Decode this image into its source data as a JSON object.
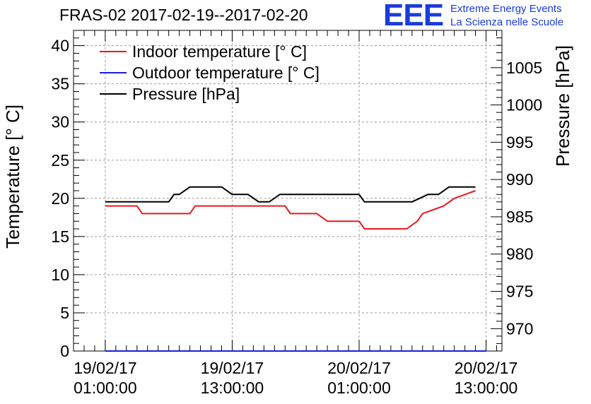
{
  "title": "FRAS-02 2017-02-19--2017-02-20",
  "logo": {
    "mark": "EEE",
    "line1": "Extreme Energy Events",
    "line2": "La Scienza nelle Scuole"
  },
  "colors": {
    "indoor": "#e8191b",
    "outdoor": "#1d1de0",
    "pressure": "#000000",
    "logo": "#1a3cdc"
  },
  "chart_data": {
    "type": "line",
    "title": "FRAS-02 2017-02-19--2017-02-20",
    "xlabel": "",
    "ylabel": "Temperature [° C]",
    "y2label": "Pressure [hPa]",
    "ylim": [
      0,
      42
    ],
    "y2lim": [
      967,
      1010
    ],
    "xlim": [
      "2017-02-18 22:00:00",
      "2017-02-20 14:30:00"
    ],
    "x_ticks": [
      {
        "x": "2017-02-19 01:00:00",
        "label1": "19/02/17",
        "label2": "01:00:00"
      },
      {
        "x": "2017-02-19 13:00:00",
        "label1": "19/02/17",
        "label2": "13:00:00"
      },
      {
        "x": "2017-02-20 01:00:00",
        "label1": "20/02/17",
        "label2": "01:00:00"
      },
      {
        "x": "2017-02-20 13:00:00",
        "label1": "20/02/17",
        "label2": "13:00:00"
      }
    ],
    "y_ticks": [
      0,
      5,
      10,
      15,
      20,
      25,
      30,
      35,
      40
    ],
    "y2_ticks": [
      970,
      975,
      980,
      985,
      990,
      995,
      1000,
      1005
    ],
    "grid": true,
    "legend_position": "top-left",
    "series": [
      {
        "name": "Indoor temperature [° C]",
        "axis": "left",
        "x": [
          "2017-02-19 01:00:00",
          "2017-02-19 04:00:00",
          "2017-02-19 04:30:00",
          "2017-02-19 09:00:00",
          "2017-02-19 09:30:00",
          "2017-02-19 18:00:00",
          "2017-02-19 18:30:00",
          "2017-02-19 21:00:00",
          "2017-02-19 22:00:00",
          "2017-02-20 01:00:00",
          "2017-02-20 01:30:00",
          "2017-02-20 05:30:00",
          "2017-02-20 06:30:00",
          "2017-02-20 07:00:00",
          "2017-02-20 08:00:00",
          "2017-02-20 09:00:00",
          "2017-02-20 10:00:00",
          "2017-02-20 11:00:00",
          "2017-02-20 12:00:00"
        ],
        "values": [
          19,
          19,
          18,
          18,
          19,
          19,
          18,
          18,
          17,
          17,
          16,
          16,
          17,
          18,
          18.5,
          19,
          20,
          20.5,
          21
        ]
      },
      {
        "name": "Outdoor temperature [° C]",
        "axis": "left",
        "x": [
          "2017-02-19 01:00:00",
          "2017-02-20 13:00:00"
        ],
        "values": [
          0,
          0
        ]
      },
      {
        "name": "Pressure [hPa]",
        "axis": "right",
        "x": [
          "2017-02-19 01:00:00",
          "2017-02-19 07:00:00",
          "2017-02-19 07:30:00",
          "2017-02-19 08:00:00",
          "2017-02-19 09:00:00",
          "2017-02-19 12:00:00",
          "2017-02-19 13:00:00",
          "2017-02-19 14:30:00",
          "2017-02-19 15:30:00",
          "2017-02-19 16:30:00",
          "2017-02-19 17:30:00",
          "2017-02-20 01:00:00",
          "2017-02-20 01:30:00",
          "2017-02-20 05:00:00",
          "2017-02-20 06:00:00",
          "2017-02-20 07:30:00",
          "2017-02-20 08:00:00",
          "2017-02-20 08:30:00",
          "2017-02-20 09:30:00",
          "2017-02-20 12:00:00"
        ],
        "values": [
          987,
          987,
          988,
          988,
          989,
          989,
          988,
          988,
          987,
          987,
          988,
          988,
          987,
          987,
          987,
          988,
          988,
          988,
          989,
          989
        ]
      }
    ]
  }
}
